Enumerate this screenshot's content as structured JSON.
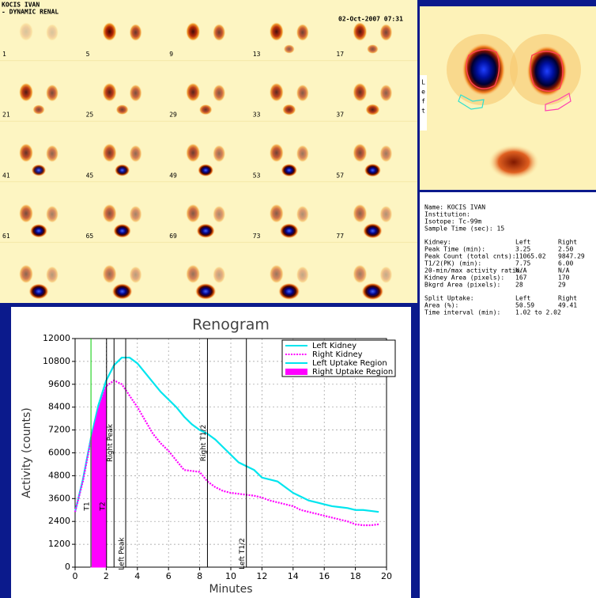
{
  "header": {
    "patient": "KOCIS IVAN",
    "study": "- DYNAMIC RENAL",
    "datetime": "02-Oct-2007 07:31"
  },
  "frames": [
    "1",
    "5",
    "9",
    "13",
    "17",
    "21",
    "25",
    "29",
    "33",
    "37",
    "41",
    "45",
    "49",
    "53",
    "57",
    "61",
    "65",
    "69",
    "73",
    "77"
  ],
  "roi_image": {
    "side_label": "Left"
  },
  "info": {
    "lines": [
      "Name: KOCIS IVAN",
      "Institution:",
      "Isotope: Tc-99m",
      "Sample Time (sec): 15"
    ],
    "kidney_table": [
      [
        "Kidney:",
        "Left",
        "Right"
      ],
      [
        "Peak Time (min):",
        "3.25",
        "2.50"
      ],
      [
        "Peak Count (total cnts):",
        "11065.02",
        "9847.29"
      ],
      [
        "T1/2(PK) (min):",
        "7.75",
        "6.00"
      ],
      [
        "20-min/max activity ratio:",
        "N/A",
        "N/A"
      ],
      [
        "Kidney Area (pixels):",
        "167",
        "170"
      ],
      [
        "Bkgrd Area (pixels):",
        "28",
        "29"
      ]
    ],
    "uptake_table": [
      [
        "Split Uptake:",
        "Left",
        "Right"
      ],
      [
        "Area (%):",
        "50.59",
        "49.41"
      ],
      [
        "Time interval (min):",
        "1.02 to 2.02"
      ]
    ]
  },
  "chart_data": {
    "type": "line",
    "title": "Renogram",
    "x_label": "Minutes",
    "y_label": "Activity (counts)",
    "x": [
      0,
      0.5,
      1,
      1.5,
      2,
      2.5,
      3,
      3.5,
      4,
      4.5,
      5,
      5.5,
      6,
      6.5,
      7,
      7.5,
      8,
      8.5,
      9,
      9.5,
      10,
      10.5,
      11,
      11.5,
      12,
      12.5,
      13,
      13.5,
      14,
      14.5,
      15,
      15.5,
      16,
      16.5,
      17,
      17.5,
      18,
      18.5,
      19,
      19.5
    ],
    "series": [
      {
        "name": "Left Kidney",
        "color": "#00e5ee",
        "style": "solid",
        "values": [
          2900,
          4600,
          6700,
          8500,
          9800,
          10600,
          11000,
          11000,
          10700,
          10200,
          9700,
          9200,
          8800,
          8400,
          7900,
          7500,
          7200,
          7000,
          6700,
          6300,
          5900,
          5500,
          5300,
          5100,
          4700,
          4600,
          4500,
          4200,
          3900,
          3700,
          3500,
          3400,
          3300,
          3200,
          3150,
          3100,
          3000,
          3000,
          2950,
          2900
        ]
      },
      {
        "name": "Right Kidney",
        "color": "#ff00ff",
        "style": "dashed",
        "values": [
          2900,
          4500,
          6600,
          8300,
          9500,
          9800,
          9600,
          9000,
          8400,
          7700,
          7000,
          6500,
          6100,
          5600,
          5100,
          5050,
          5000,
          4500,
          4200,
          4000,
          3900,
          3850,
          3800,
          3750,
          3650,
          3500,
          3400,
          3300,
          3200,
          3000,
          2900,
          2800,
          2700,
          2600,
          2500,
          2400,
          2250,
          2200,
          2200,
          2250
        ]
      },
      {
        "name": "Left Uptake Region",
        "color": "#00e5ee",
        "style": "solid",
        "x": [
          1,
          1.5,
          2
        ],
        "values": [
          6700,
          8500,
          9800
        ]
      },
      {
        "name": "Right Uptake Region",
        "color": "#ff00ff",
        "style": "fill",
        "x": [
          1,
          1.5,
          2
        ],
        "values": [
          6600,
          8300,
          9500
        ]
      }
    ],
    "markers": [
      {
        "x": 1.02,
        "label": "T1",
        "color": "#00cc00"
      },
      {
        "x": 2.02,
        "label": "T2",
        "color": "#000000"
      },
      {
        "x": 2.5,
        "label": "Right Peak",
        "color": "#000000"
      },
      {
        "x": 3.25,
        "label": "Left Peak",
        "color": "#000000"
      },
      {
        "x": 8.5,
        "label": "Right T1/2",
        "color": "#000000"
      },
      {
        "x": 11,
        "label": "Left T1/2",
        "color": "#000000"
      }
    ],
    "xlim": [
      0,
      20
    ],
    "xticks": [
      0,
      2,
      4,
      6,
      8,
      10,
      12,
      14,
      16,
      18,
      20
    ],
    "ylim": [
      0,
      12000
    ],
    "yticks": [
      0,
      1200,
      2400,
      3600,
      4800,
      6000,
      7200,
      8400,
      9600,
      10800,
      12000
    ],
    "grid": true,
    "legend": "top-right"
  }
}
